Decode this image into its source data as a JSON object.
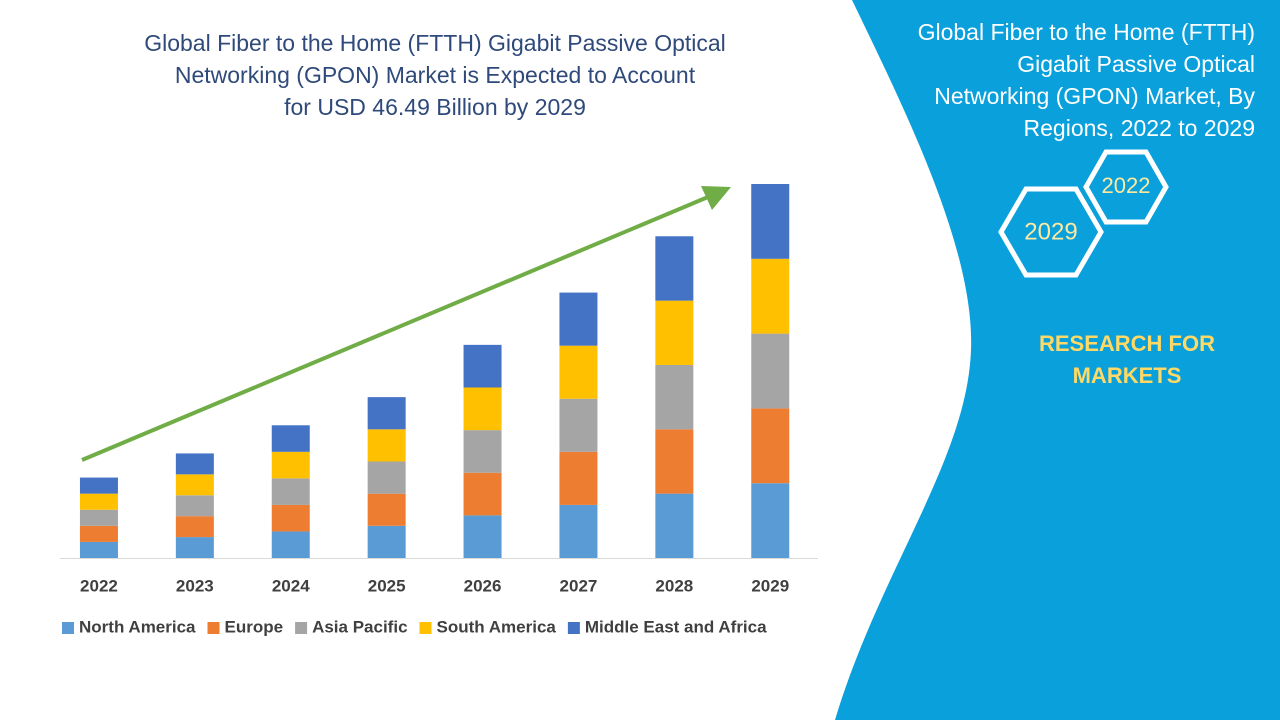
{
  "chart_data": {
    "type": "bar",
    "stacked": true,
    "title": [
      "Global Fiber to the Home (FTTH) Gigabit Passive Optical",
      "Networking (GPON) Market is Expected to Account",
      "for USD 46.49 Billion by 2029"
    ],
    "categories": [
      "2022",
      "2023",
      "2024",
      "2025",
      "2026",
      "2027",
      "2028",
      "2029"
    ],
    "series": [
      {
        "name": "North America",
        "color": "#5b9bd5",
        "values": [
          2.0,
          2.6,
          3.3,
          4.0,
          5.3,
          6.6,
          8.0,
          9.3
        ]
      },
      {
        "name": "Europe",
        "color": "#ed7d31",
        "values": [
          2.0,
          2.6,
          3.3,
          4.0,
          5.3,
          6.6,
          8.0,
          9.3
        ]
      },
      {
        "name": "Asia Pacific",
        "color": "#a5a5a5",
        "values": [
          2.0,
          2.6,
          3.3,
          4.0,
          5.3,
          6.6,
          8.0,
          9.3
        ]
      },
      {
        "name": "South America",
        "color": "#ffc000",
        "values": [
          2.0,
          2.6,
          3.3,
          4.0,
          5.3,
          6.6,
          8.0,
          9.3
        ]
      },
      {
        "name": "Middle East and Africa",
        "color": "#4472c4",
        "values": [
          2.0,
          2.6,
          3.3,
          4.0,
          5.3,
          6.6,
          8.0,
          9.3
        ]
      }
    ],
    "legend": "bottom"
  },
  "side_panel": {
    "title": [
      "Global Fiber to the Home (FTTH)",
      "Gigabit Passive Optical",
      "Networking (GPON) Market, By",
      "Regions, 2022 to 2029"
    ],
    "badges": [
      "2022",
      "2029"
    ],
    "brand": [
      "RESEARCH FOR",
      "MARKETS"
    ]
  }
}
